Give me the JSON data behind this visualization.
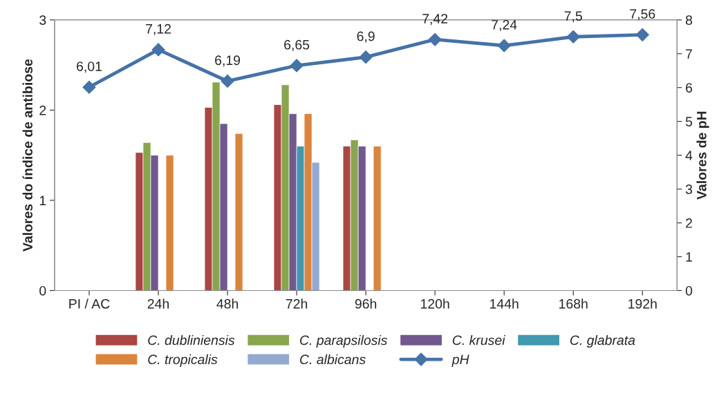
{
  "chart_data": {
    "type": "bar",
    "categories": [
      "PI / AC",
      "24h",
      "48h",
      "72h",
      "96h",
      "120h",
      "144h",
      "168h",
      "192h"
    ],
    "ylabel": "Valores do índice de antibiose",
    "y2label": "Valores de pH",
    "ylim": [
      0,
      3
    ],
    "yticks": [
      0,
      1,
      2,
      3
    ],
    "y2lim": [
      0,
      8
    ],
    "y2ticks": [
      0,
      1,
      2,
      3,
      4,
      5,
      6,
      7,
      8
    ],
    "grid": false,
    "legend": "bottom",
    "series": [
      {
        "name": "C. dubliniensis",
        "color": "#aa4643",
        "values": [
          null,
          1.53,
          2.03,
          2.06,
          1.6,
          null,
          null,
          null,
          null
        ]
      },
      {
        "name": "C. parapsilosis",
        "color": "#89a54e",
        "values": [
          null,
          1.64,
          2.31,
          2.28,
          1.67,
          null,
          null,
          null,
          null
        ]
      },
      {
        "name": "C. krusei",
        "color": "#71588f",
        "values": [
          null,
          1.5,
          1.85,
          1.96,
          1.6,
          null,
          null,
          null,
          null
        ]
      },
      {
        "name": "C. glabrata",
        "color": "#4198af",
        "values": [
          null,
          null,
          null,
          1.6,
          null,
          null,
          null,
          null,
          null
        ]
      },
      {
        "name": "C. tropicalis",
        "color": "#db843d",
        "values": [
          null,
          1.5,
          1.74,
          1.96,
          1.6,
          null,
          null,
          null,
          null
        ]
      },
      {
        "name": "C. albicans",
        "color": "#93a9cf",
        "values": [
          null,
          null,
          null,
          1.42,
          null,
          null,
          null,
          null,
          null
        ]
      },
      {
        "name": "pH",
        "type": "line",
        "axis": "y2",
        "color": "#4572a7",
        "marker": "diamond",
        "values": [
          6.01,
          7.12,
          6.19,
          6.65,
          6.9,
          7.42,
          7.24,
          7.5,
          7.56
        ],
        "value_labels": [
          "6,01",
          "7,12",
          "6,19",
          "6,65",
          "6,9",
          "7,42",
          "7,24",
          "7,5",
          "7,56"
        ]
      }
    ]
  }
}
